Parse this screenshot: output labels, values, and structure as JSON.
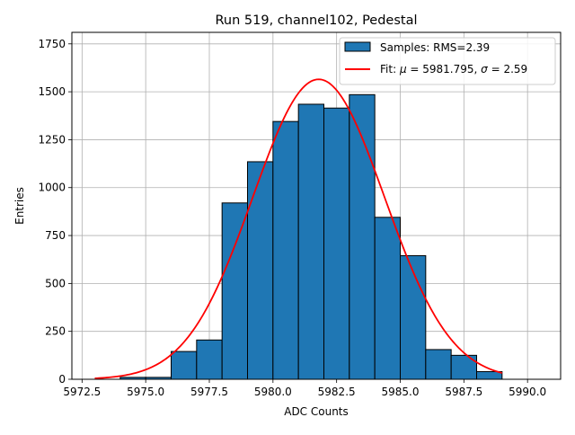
{
  "chart_data": {
    "type": "bar",
    "title": "Run 519, channel102, Pedestal",
    "xlabel": "ADC Counts",
    "ylabel": "Entries",
    "xlim": [
      5972.1,
      5991.3
    ],
    "ylim": [
      0,
      1810
    ],
    "grid": true,
    "legend_position": "top-right",
    "x_ticks": [
      5972.5,
      5975.0,
      5977.5,
      5980.0,
      5982.5,
      5985.0,
      5987.5,
      5990.0
    ],
    "x_tick_labels": [
      "5972.5",
      "5975.0",
      "5977.5",
      "5980.0",
      "5982.5",
      "5985.0",
      "5987.5",
      "5990.0"
    ],
    "y_ticks": [
      0,
      250,
      500,
      750,
      1000,
      1250,
      1500,
      1750
    ],
    "y_tick_labels": [
      "0",
      "250",
      "500",
      "750",
      "1000",
      "1250",
      "1500",
      "1750"
    ],
    "bar_color": "#1f77b4",
    "bar_edge_color": "#000000",
    "bins": [
      {
        "x0": 5974,
        "x1": 5975,
        "value": 10
      },
      {
        "x0": 5975,
        "x1": 5976,
        "value": 10
      },
      {
        "x0": 5976,
        "x1": 5977,
        "value": 145
      },
      {
        "x0": 5977,
        "x1": 5978,
        "value": 205
      },
      {
        "x0": 5978,
        "x1": 5979,
        "value": 920
      },
      {
        "x0": 5979,
        "x1": 5980,
        "value": 1135
      },
      {
        "x0": 5980,
        "x1": 5981,
        "value": 1345
      },
      {
        "x0": 5981,
        "x1": 5982,
        "value": 1435
      },
      {
        "x0": 5982,
        "x1": 5983,
        "value": 1415
      },
      {
        "x0": 5983,
        "x1": 5984,
        "value": 1485
      },
      {
        "x0": 5984,
        "x1": 5985,
        "value": 845
      },
      {
        "x0": 5985,
        "x1": 5986,
        "value": 645
      },
      {
        "x0": 5986,
        "x1": 5987,
        "value": 155
      },
      {
        "x0": 5987,
        "x1": 5988,
        "value": 125
      },
      {
        "x0": 5988,
        "x1": 5989,
        "value": 40
      }
    ],
    "fit": {
      "color": "#ff0000",
      "mu": 5981.795,
      "sigma": 2.59,
      "amplitude": 1565,
      "x_range": [
        5973,
        5989
      ]
    },
    "legend": [
      {
        "kind": "bar",
        "label": "Samples: RMS=2.39"
      },
      {
        "kind": "line",
        "label_prefix": "Fit: ",
        "mu_symbol": "μ",
        "mu_text": " = 5981.795, ",
        "sigma_symbol": "σ",
        "sigma_text": " = 2.59"
      }
    ]
  }
}
